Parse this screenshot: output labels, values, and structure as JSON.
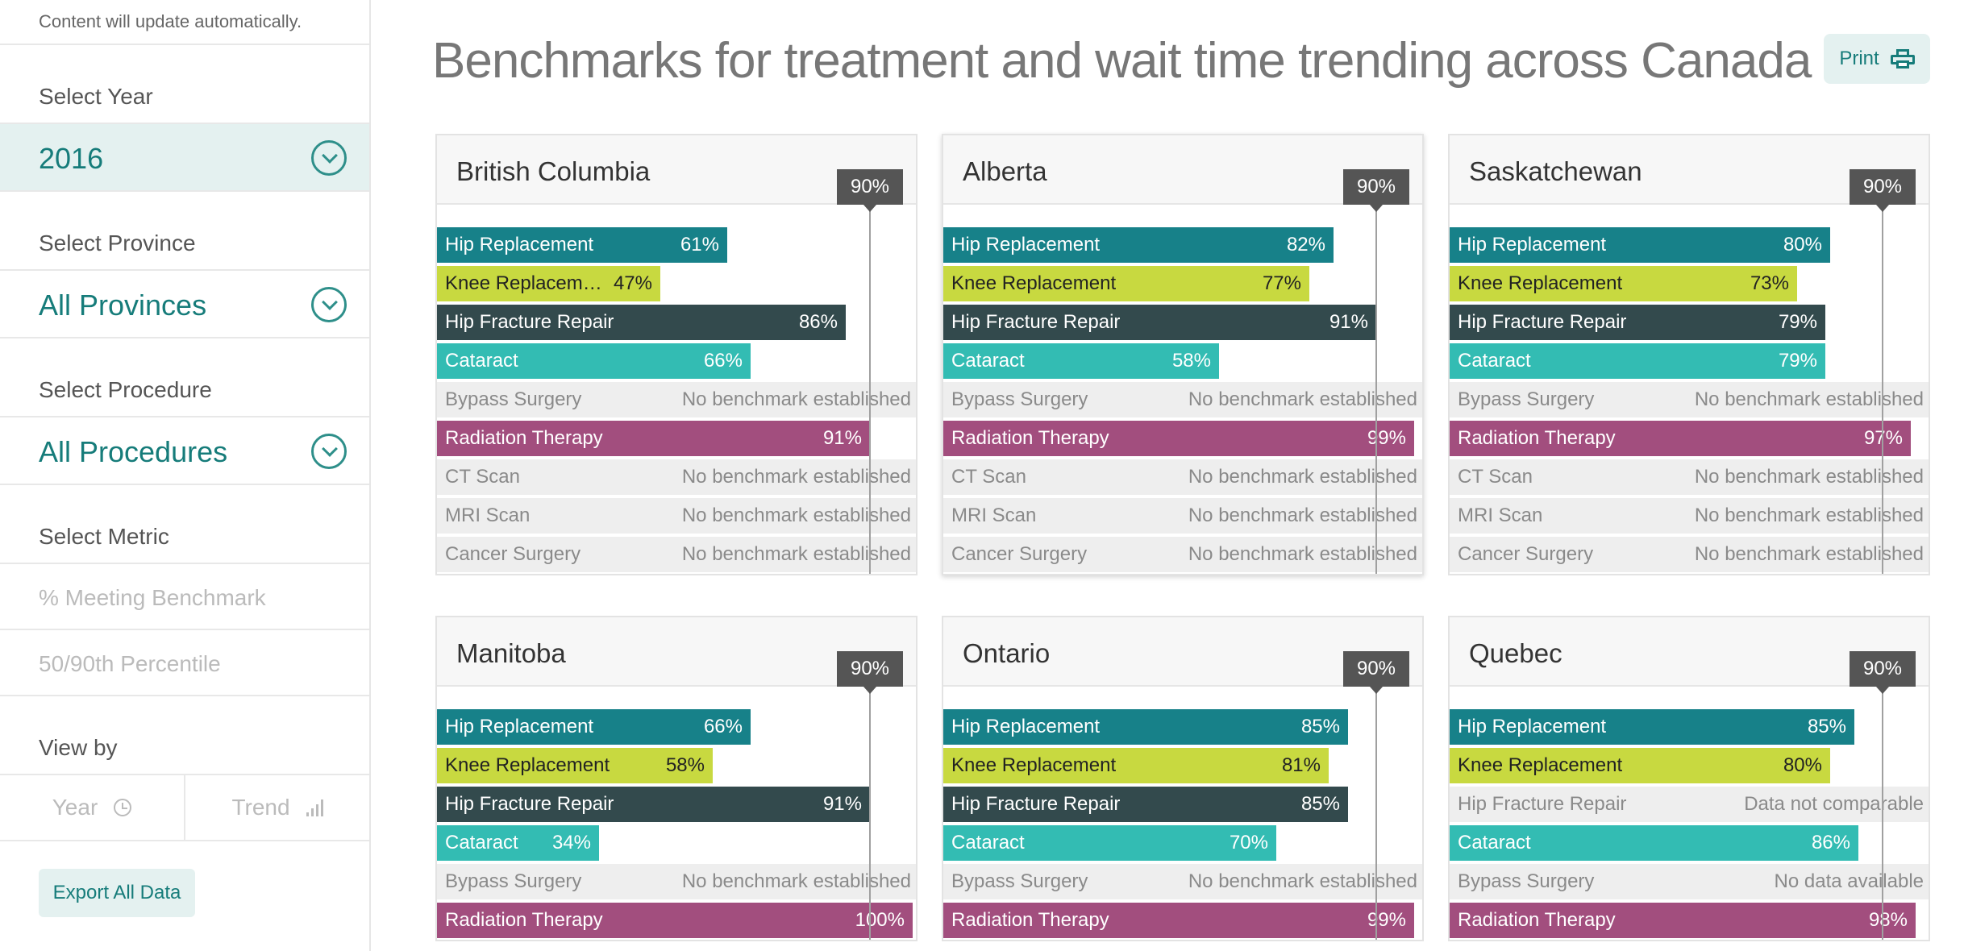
{
  "sidebar": {
    "note": "Content will update automatically.",
    "year_label": "Select Year",
    "year_value": "2016",
    "province_label": "Select Province",
    "province_value": "All Provinces",
    "procedure_label": "Select Procedure",
    "procedure_value": "All Procedures",
    "metric_label": "Select Metric",
    "metric_options": [
      "% Meeting Benchmark",
      "50/90th Percentile"
    ],
    "viewby_label": "View by",
    "viewby_options": [
      "Year",
      "Trend"
    ],
    "export_label": "Export All Data"
  },
  "header": {
    "title": "Benchmarks for treatment and wait time trending across Canada",
    "print_label": "Print"
  },
  "benchmark": {
    "label": "90%",
    "value": 90
  },
  "colors": {
    "Hip Replacement": "#178189",
    "Knee Replacement": "#c8d940",
    "Hip Fracture Repair": "#334a4d",
    "Cataract": "#33bcb3",
    "Radiation Therapy": "#a24e7e",
    "na": "#eeeeee"
  },
  "provinces": [
    {
      "name": "British Columbia",
      "rows": [
        {
          "label": "Hip Replacement",
          "value": 61,
          "text": "61%"
        },
        {
          "label": "Knee Replacem…",
          "value": 47,
          "text": "47%",
          "colorKey": "Knee Replacement"
        },
        {
          "label": "Hip Fracture Repair",
          "value": 86,
          "text": "86%"
        },
        {
          "label": "Cataract",
          "value": 66,
          "text": "66%"
        },
        {
          "label": "Bypass Surgery",
          "text": "No benchmark established"
        },
        {
          "label": "Radiation Therapy",
          "value": 91,
          "text": "91%"
        },
        {
          "label": "CT Scan",
          "text": "No benchmark established"
        },
        {
          "label": "MRI Scan",
          "text": "No benchmark established"
        },
        {
          "label": "Cancer Surgery",
          "text": "No benchmark established"
        }
      ]
    },
    {
      "name": "Alberta",
      "rows": [
        {
          "label": "Hip Replacement",
          "value": 82,
          "text": "82%"
        },
        {
          "label": "Knee Replacement",
          "value": 77,
          "text": "77%"
        },
        {
          "label": "Hip Fracture Repair",
          "value": 91,
          "text": "91%"
        },
        {
          "label": "Cataract",
          "value": 58,
          "text": "58%"
        },
        {
          "label": "Bypass Surgery",
          "text": "No benchmark established"
        },
        {
          "label": "Radiation Therapy",
          "value": 99,
          "text": "99%"
        },
        {
          "label": "CT Scan",
          "text": "No benchmark established"
        },
        {
          "label": "MRI Scan",
          "text": "No benchmark established"
        },
        {
          "label": "Cancer Surgery",
          "text": "No benchmark established"
        }
      ]
    },
    {
      "name": "Saskatchewan",
      "rows": [
        {
          "label": "Hip Replacement",
          "value": 80,
          "text": "80%"
        },
        {
          "label": "Knee Replacement",
          "value": 73,
          "text": "73%"
        },
        {
          "label": "Hip Fracture Repair",
          "value": 79,
          "text": "79%"
        },
        {
          "label": "Cataract",
          "value": 79,
          "text": "79%"
        },
        {
          "label": "Bypass Surgery",
          "text": "No benchmark established"
        },
        {
          "label": "Radiation Therapy",
          "value": 97,
          "text": "97%"
        },
        {
          "label": "CT Scan",
          "text": "No benchmark established"
        },
        {
          "label": "MRI Scan",
          "text": "No benchmark established"
        },
        {
          "label": "Cancer Surgery",
          "text": "No benchmark established"
        }
      ]
    },
    {
      "name": "Manitoba",
      "rows": [
        {
          "label": "Hip Replacement",
          "value": 66,
          "text": "66%"
        },
        {
          "label": "Knee Replacement",
          "value": 58,
          "text": "58%"
        },
        {
          "label": "Hip Fracture Repair",
          "value": 91,
          "text": "91%"
        },
        {
          "label": "Cataract",
          "value": 34,
          "text": "34%"
        },
        {
          "label": "Bypass Surgery",
          "text": "No benchmark established"
        },
        {
          "label": "Radiation Therapy",
          "value": 100,
          "text": "100%"
        }
      ]
    },
    {
      "name": "Ontario",
      "rows": [
        {
          "label": "Hip Replacement",
          "value": 85,
          "text": "85%"
        },
        {
          "label": "Knee Replacement",
          "value": 81,
          "text": "81%"
        },
        {
          "label": "Hip Fracture Repair",
          "value": 85,
          "text": "85%"
        },
        {
          "label": "Cataract",
          "value": 70,
          "text": "70%"
        },
        {
          "label": "Bypass Surgery",
          "text": "No benchmark established"
        },
        {
          "label": "Radiation Therapy",
          "value": 99,
          "text": "99%"
        }
      ]
    },
    {
      "name": "Quebec",
      "rows": [
        {
          "label": "Hip Replacement",
          "value": 85,
          "text": "85%"
        },
        {
          "label": "Knee Replacement",
          "value": 80,
          "text": "80%"
        },
        {
          "label": "Hip Fracture Repair",
          "text": "Data not comparable"
        },
        {
          "label": "Cataract",
          "value": 86,
          "text": "86%"
        },
        {
          "label": "Bypass Surgery",
          "text": "No data available"
        },
        {
          "label": "Radiation Therapy",
          "value": 98,
          "text": "98%"
        }
      ]
    }
  ]
}
